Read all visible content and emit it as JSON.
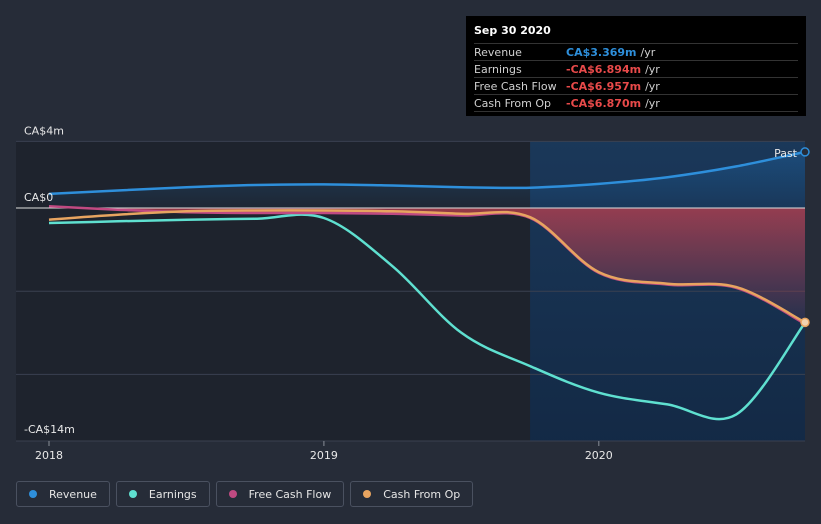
{
  "tooltip": {
    "date": "Sep 30 2020",
    "rows": [
      {
        "label": "Revenue",
        "value": "CA$3.369m",
        "unit": "/yr",
        "color": "#2e8fdb"
      },
      {
        "label": "Earnings",
        "value": "-CA$6.894m",
        "unit": "/yr",
        "color": "#e84a4a"
      },
      {
        "label": "Free Cash Flow",
        "value": "-CA$6.957m",
        "unit": "/yr",
        "color": "#e84a4a"
      },
      {
        "label": "Cash From Op",
        "value": "-CA$6.870m",
        "unit": "/yr",
        "color": "#e84a4a"
      }
    ]
  },
  "legend": [
    {
      "label": "Revenue",
      "color": "#2e8fdb"
    },
    {
      "label": "Earnings",
      "color": "#5fe0d0"
    },
    {
      "label": "Free Cash Flow",
      "color": "#c04a82"
    },
    {
      "label": "Cash From Op",
      "color": "#e7a460"
    }
  ],
  "past_label": "Past",
  "chart_data": {
    "type": "line",
    "unit": "CA$m",
    "ylim": [
      -14,
      4
    ],
    "xlim": [
      2018.0,
      2020.75
    ],
    "y_tick_labels": [
      {
        "value": 4,
        "label": "CA$4m"
      },
      {
        "value": 0,
        "label": "CA$0"
      },
      {
        "value": -14,
        "label": "-CA$14m"
      }
    ],
    "x_tick_labels": [
      {
        "value": 2018,
        "label": "2018"
      },
      {
        "value": 2019,
        "label": "2019"
      },
      {
        "value": 2020,
        "label": "2020"
      }
    ],
    "grid": true,
    "past_region_start": 2019.75,
    "series": [
      {
        "name": "Revenue",
        "color": "#2e8fdb",
        "x": [
          2018.0,
          2018.25,
          2018.5,
          2018.75,
          2019.0,
          2019.25,
          2019.5,
          2019.75,
          2020.0,
          2020.25,
          2020.5,
          2020.75
        ],
        "y": [
          0.85,
          1.05,
          1.25,
          1.38,
          1.42,
          1.35,
          1.25,
          1.22,
          1.45,
          1.85,
          2.5,
          3.369
        ]
      },
      {
        "name": "Earnings",
        "color": "#5fe0d0",
        "x": [
          2018.0,
          2018.25,
          2018.5,
          2018.75,
          2019.0,
          2019.25,
          2019.5,
          2019.75,
          2020.0,
          2020.25,
          2020.5,
          2020.75
        ],
        "y": [
          -0.9,
          -0.8,
          -0.7,
          -0.65,
          -0.6,
          -3.5,
          -7.5,
          -9.5,
          -11.1,
          -11.8,
          -12.4,
          -6.894
        ]
      },
      {
        "name": "Free Cash Flow",
        "color": "#c04a82",
        "x": [
          2018.0,
          2018.25,
          2018.5,
          2018.75,
          2019.0,
          2019.25,
          2019.5,
          2019.75,
          2020.0,
          2020.25,
          2020.5,
          2020.75
        ],
        "y": [
          0.1,
          -0.1,
          -0.25,
          -0.3,
          -0.3,
          -0.35,
          -0.45,
          -0.6,
          -3.9,
          -4.6,
          -4.8,
          -6.957
        ]
      },
      {
        "name": "Cash From Op",
        "color": "#e7a460",
        "x": [
          2018.0,
          2018.25,
          2018.5,
          2018.75,
          2019.0,
          2019.25,
          2019.5,
          2019.75,
          2020.0,
          2020.25,
          2020.5,
          2020.75
        ],
        "y": [
          -0.7,
          -0.4,
          -0.2,
          -0.15,
          -0.15,
          -0.2,
          -0.35,
          -0.55,
          -3.85,
          -4.55,
          -4.75,
          -6.87
        ]
      }
    ]
  }
}
